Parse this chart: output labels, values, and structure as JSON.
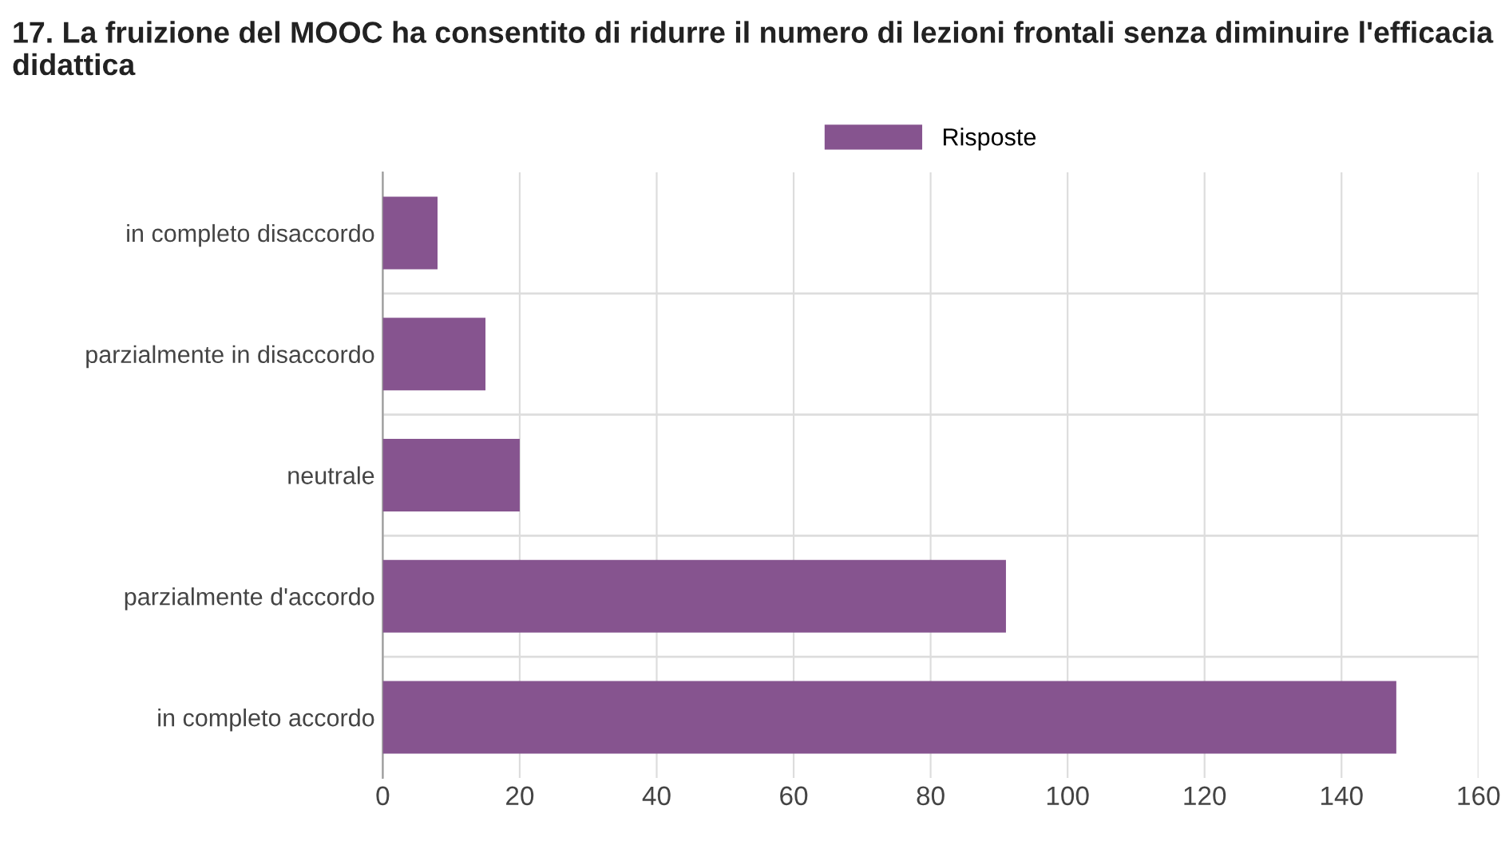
{
  "chart_data": {
    "type": "bar",
    "orientation": "horizontal",
    "title": "17. La fruizione del MOOC ha consentito di ridurre il numero di lezioni frontali senza diminuire l'efficacia didattica",
    "categories": [
      "in completo disaccordo",
      "parzialmente in disaccordo",
      "neutrale",
      "parzialmente d'accordo",
      "in completo accordo"
    ],
    "series": [
      {
        "name": "Risposte",
        "color": "#86548f",
        "values": [
          8,
          15,
          20,
          91,
          148
        ]
      }
    ],
    "xlim": [
      0,
      160
    ],
    "xticks": [
      0,
      20,
      40,
      60,
      80,
      100,
      120,
      140,
      160
    ],
    "grid": true,
    "legend": "top"
  }
}
